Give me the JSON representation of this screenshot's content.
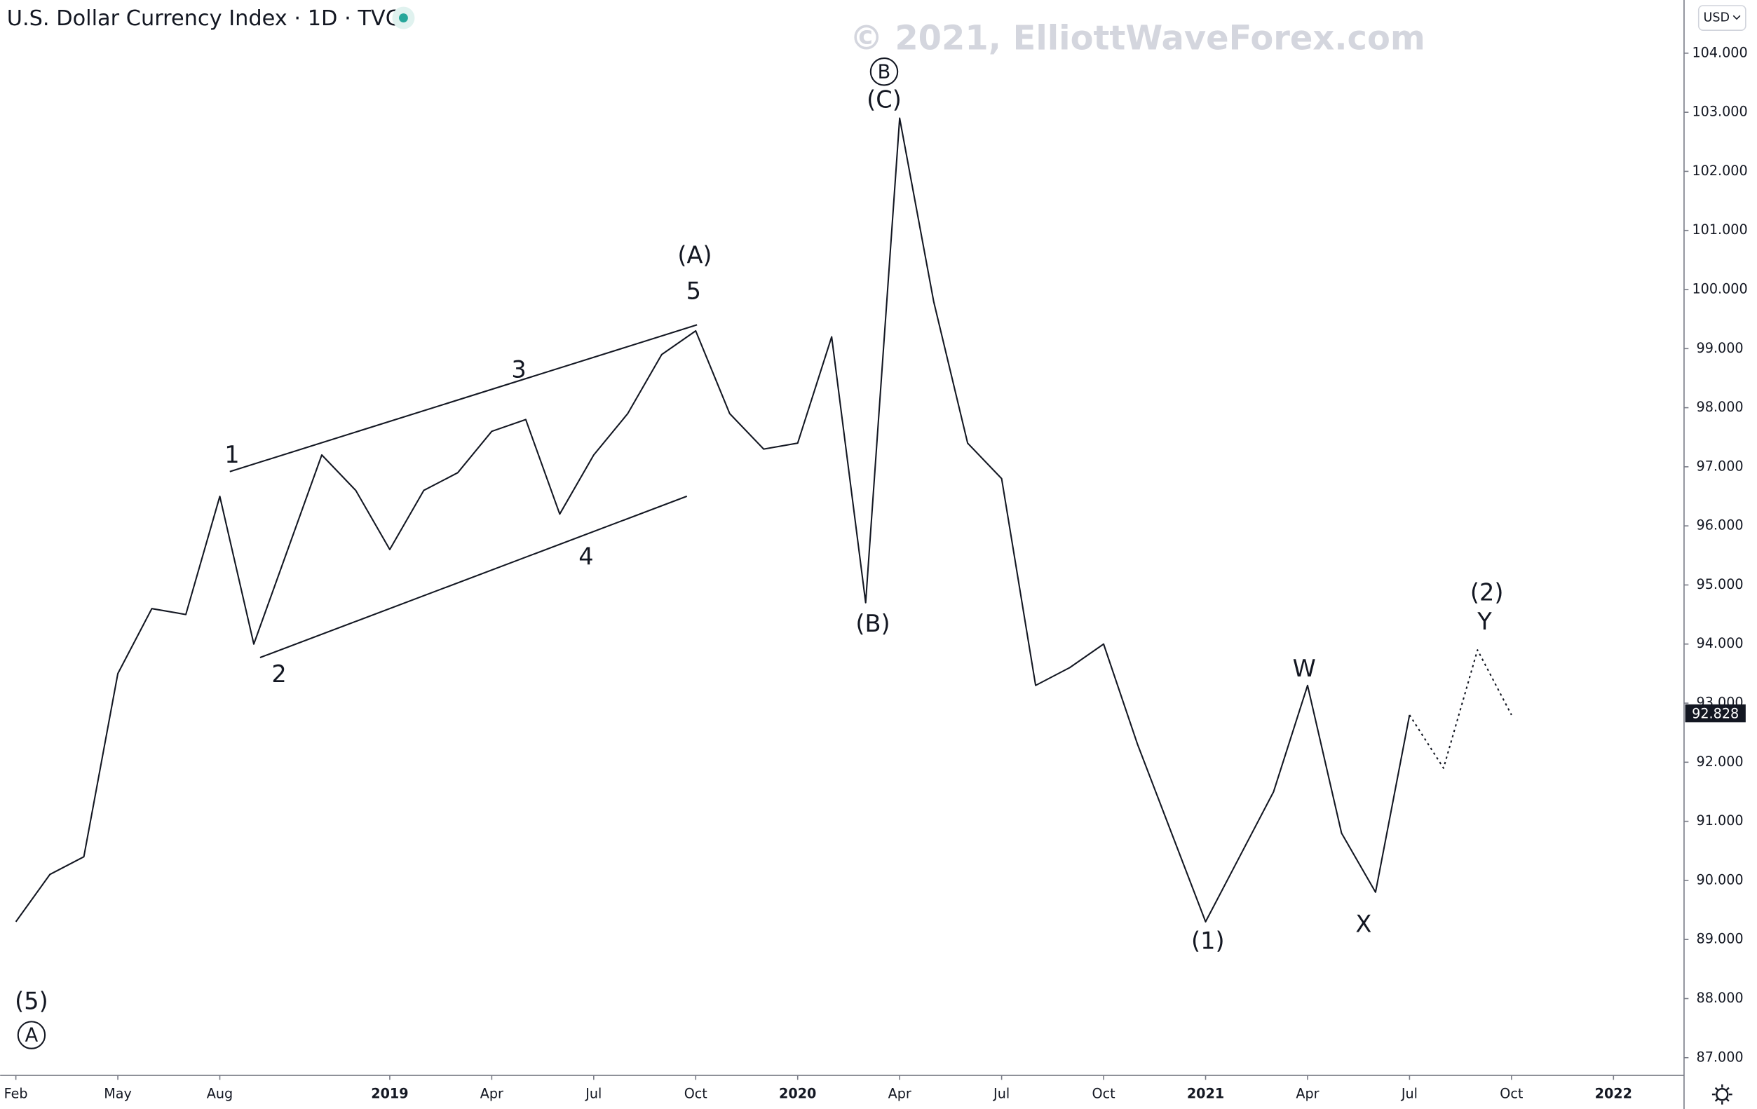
{
  "header": {
    "symbol": "U.S. Dollar Currency Index",
    "interval": "1D",
    "source": "TVC",
    "watermark": "© 2021, ElliottWaveForex.com",
    "currency": "USD"
  },
  "chart_data": {
    "type": "line",
    "x": [
      "2018-02",
      "2018-03",
      "2018-04",
      "2018-05",
      "2018-06",
      "2018-07",
      "2018-08",
      "2018-09",
      "2018-10",
      "2018-11",
      "2018-12",
      "2019-01",
      "2019-02",
      "2019-03",
      "2019-04",
      "2019-05",
      "2019-06",
      "2019-07",
      "2019-08",
      "2019-09",
      "2019-10",
      "2019-11",
      "2019-12",
      "2020-01",
      "2020-02",
      "2020-03",
      "2020-04",
      "2020-05",
      "2020-06",
      "2020-07",
      "2020-08",
      "2020-09",
      "2020-10",
      "2020-11",
      "2020-12",
      "2021-01",
      "2021-02",
      "2021-03",
      "2021-04",
      "2021-05",
      "2021-06",
      "2021-07",
      "2021-08",
      "2021-09",
      "2021-10"
    ],
    "series": [
      {
        "color": "#131722",
        "values": [
          89.3,
          90.1,
          90.4,
          93.5,
          94.6,
          94.5,
          96.5,
          94.0,
          95.6,
          97.2,
          96.6,
          95.6,
          96.6,
          96.9,
          97.6,
          97.8,
          96.2,
          97.2,
          97.9,
          98.9,
          99.3,
          97.9,
          97.3,
          97.4,
          99.2,
          94.7,
          102.9,
          99.8,
          97.4,
          96.8,
          93.3,
          93.6,
          94.0,
          92.3,
          90.8,
          89.3,
          90.4,
          91.5,
          93.3,
          90.8,
          89.8,
          92.8,
          null,
          null,
          null
        ]
      },
      {
        "color": "#131722",
        "dashed": true,
        "values": [
          null,
          null,
          null,
          null,
          null,
          null,
          null,
          null,
          null,
          null,
          null,
          null,
          null,
          null,
          null,
          null,
          null,
          null,
          null,
          null,
          null,
          null,
          null,
          null,
          null,
          null,
          null,
          null,
          null,
          null,
          null,
          null,
          null,
          null,
          null,
          null,
          null,
          null,
          null,
          null,
          null,
          92.8,
          91.9,
          93.9,
          92.8
        ]
      }
    ],
    "last_value": 92.828,
    "xlim": [
      "2018-01",
      "2022-03"
    ],
    "xticks": [
      {
        "value": "2018-02",
        "label": "Feb"
      },
      {
        "value": "2018-05",
        "label": "May"
      },
      {
        "value": "2018-08",
        "label": "Aug"
      },
      {
        "value": "2019-01",
        "label": "2019"
      },
      {
        "value": "2019-04",
        "label": "Apr"
      },
      {
        "value": "2019-07",
        "label": "Jul"
      },
      {
        "value": "2019-10",
        "label": "Oct"
      },
      {
        "value": "2020-01",
        "label": "2020"
      },
      {
        "value": "2020-04",
        "label": "Apr"
      },
      {
        "value": "2020-07",
        "label": "Jul"
      },
      {
        "value": "2020-10",
        "label": "Oct"
      },
      {
        "value": "2021-01",
        "label": "2021"
      },
      {
        "value": "2021-04",
        "label": "Apr"
      },
      {
        "value": "2021-07",
        "label": "Jul"
      },
      {
        "value": "2021-10",
        "label": "Oct"
      },
      {
        "value": "2022-01",
        "label": "2022"
      }
    ],
    "ylim": [
      86.7,
      104.9
    ],
    "yticks": [
      {
        "value": 87,
        "label": "87.000"
      },
      {
        "value": 88,
        "label": "88.000"
      },
      {
        "value": 89,
        "label": "89.000"
      },
      {
        "value": 90,
        "label": "90.000"
      },
      {
        "value": 91,
        "label": "91.000"
      },
      {
        "value": 92,
        "label": "92.000"
      },
      {
        "value": 93,
        "label": "93.000"
      },
      {
        "value": 94,
        "label": "94.000"
      },
      {
        "value": 95,
        "label": "95.000"
      },
      {
        "value": 96,
        "label": "96.000"
      },
      {
        "value": 97,
        "label": "97.000"
      },
      {
        "value": 98,
        "label": "98.000"
      },
      {
        "value": 99,
        "label": "99.000"
      },
      {
        "value": 100,
        "label": "100.000"
      },
      {
        "value": 101,
        "label": "101.000"
      },
      {
        "value": 102,
        "label": "102.000"
      },
      {
        "value": 103,
        "label": "103.000"
      },
      {
        "value": 104,
        "label": "104.000"
      }
    ],
    "grid": false,
    "annotations": [
      "(5)",
      "A",
      "1",
      "2",
      "3",
      "4",
      "5",
      "(A)",
      "(B)",
      "(C)",
      "B",
      "(1)",
      "W",
      "X",
      "Y",
      "(2)"
    ]
  }
}
